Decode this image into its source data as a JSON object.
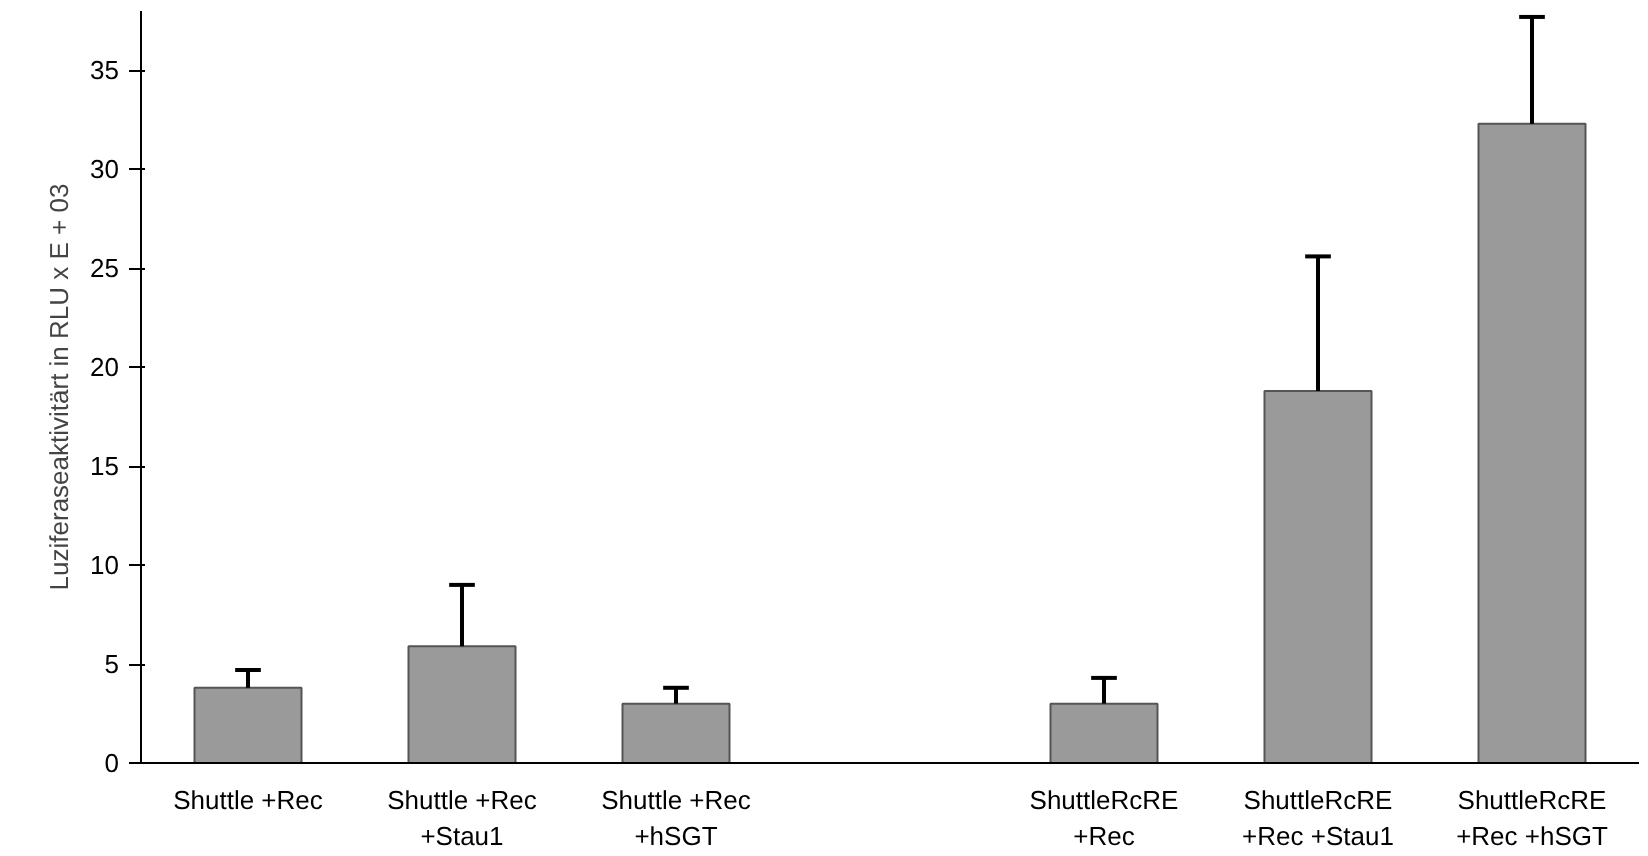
{
  "chart_data": {
    "type": "bar",
    "ylabel": "Luziferaseaktivitärt in RLU x E + 03",
    "categories": [
      "Shuttle +Rec",
      "Shuttle +Rec\n+Stau1",
      "Shuttle +Rec\n+hSGT",
      null,
      "ShuttleRcRE\n+Rec",
      "ShuttleRcRE\n+Rec +Stau1",
      "ShuttleRcRE\n+Rec +hSGT"
    ],
    "values": [
      3.8,
      5.9,
      3.0,
      null,
      3.0,
      18.8,
      32.3
    ],
    "errors": [
      [
        3.8,
        4.7
      ],
      [
        5.9,
        9.0
      ],
      [
        3.0,
        3.8
      ],
      null,
      [
        3.0,
        4.3
      ],
      [
        18.8,
        25.6
      ],
      [
        32.3,
        37.7
      ]
    ],
    "color": "#9a9a9a",
    "ylim": [
      0,
      38
    ],
    "yticks": [
      0,
      5,
      10,
      15,
      20,
      25,
      30,
      35
    ],
    "grid": false
  }
}
